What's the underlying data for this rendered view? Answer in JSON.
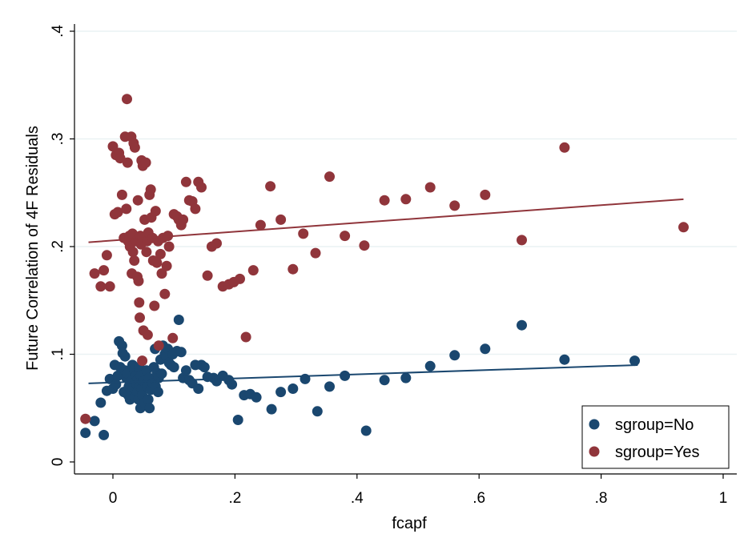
{
  "chart_data": {
    "type": "scatter",
    "xlabel": "fcapf",
    "ylabel": "Future Correlation of 4F Residuals",
    "xlim": [
      -0.06,
      1.0
    ],
    "ylim": [
      -0.01,
      0.4
    ],
    "x_ticks": [
      {
        "value": 0,
        "label": "0"
      },
      {
        "value": 0.2,
        "label": ".2"
      },
      {
        "value": 0.4,
        "label": ".4"
      },
      {
        "value": 0.6,
        "label": ".6"
      },
      {
        "value": 0.8,
        "label": ".8"
      },
      {
        "value": 1,
        "label": "1"
      }
    ],
    "y_ticks": [
      {
        "value": 0,
        "label": "0"
      },
      {
        "value": 0.1,
        "label": ".1"
      },
      {
        "value": 0.2,
        "label": ".2"
      },
      {
        "value": 0.3,
        "label": ".3"
      },
      {
        "value": 0.4,
        "label": ".4"
      }
    ],
    "grid": "horizontal",
    "legend_position": "bottom-right",
    "series": [
      {
        "name": "sgroup=No",
        "color": "#1a476f",
        "fit_line": {
          "x": [
            -0.04,
            0.86
          ],
          "y": [
            0.073,
            0.09
          ]
        },
        "points": [
          [
            -0.045,
            0.027
          ],
          [
            -0.03,
            0.038
          ],
          [
            -0.02,
            0.055
          ],
          [
            -0.015,
            0.025
          ],
          [
            -0.01,
            0.066
          ],
          [
            -0.005,
            0.077
          ],
          [
            0.0,
            0.068
          ],
          [
            0.003,
            0.09
          ],
          [
            0.005,
            0.072
          ],
          [
            0.008,
            0.08
          ],
          [
            0.01,
            0.112
          ],
          [
            0.012,
            0.088
          ],
          [
            0.015,
            0.108
          ],
          [
            0.016,
            0.101
          ],
          [
            0.018,
            0.065
          ],
          [
            0.02,
            0.098
          ],
          [
            0.02,
            0.085
          ],
          [
            0.022,
            0.078
          ],
          [
            0.024,
            0.082
          ],
          [
            0.025,
            0.062
          ],
          [
            0.026,
            0.07
          ],
          [
            0.028,
            0.058
          ],
          [
            0.03,
            0.075
          ],
          [
            0.032,
            0.09
          ],
          [
            0.033,
            0.069
          ],
          [
            0.035,
            0.085
          ],
          [
            0.036,
            0.06
          ],
          [
            0.038,
            0.08
          ],
          [
            0.039,
            0.072
          ],
          [
            0.04,
            0.065
          ],
          [
            0.041,
            0.077
          ],
          [
            0.042,
            0.058
          ],
          [
            0.043,
            0.088
          ],
          [
            0.044,
            0.07
          ],
          [
            0.045,
            0.05
          ],
          [
            0.046,
            0.08
          ],
          [
            0.047,
            0.068
          ],
          [
            0.048,
            0.062
          ],
          [
            0.05,
            0.075
          ],
          [
            0.052,
            0.055
          ],
          [
            0.054,
            0.072
          ],
          [
            0.055,
            0.085
          ],
          [
            0.056,
            0.07
          ],
          [
            0.058,
            0.058
          ],
          [
            0.059,
            0.078
          ],
          [
            0.06,
            0.05
          ],
          [
            0.062,
            0.067
          ],
          [
            0.065,
            0.073
          ],
          [
            0.067,
            0.088
          ],
          [
            0.069,
            0.105
          ],
          [
            0.07,
            0.07
          ],
          [
            0.072,
            0.083
          ],
          [
            0.074,
            0.065
          ],
          [
            0.075,
            0.078
          ],
          [
            0.078,
            0.095
          ],
          [
            0.08,
            0.082
          ],
          [
            0.082,
            0.108
          ],
          [
            0.085,
            0.1
          ],
          [
            0.088,
            0.098
          ],
          [
            0.09,
            0.105
          ],
          [
            0.092,
            0.092
          ],
          [
            0.095,
            0.09
          ],
          [
            0.098,
            0.1
          ],
          [
            0.1,
            0.088
          ],
          [
            0.105,
            0.103
          ],
          [
            0.108,
            0.132
          ],
          [
            0.112,
            0.102
          ],
          [
            0.115,
            0.078
          ],
          [
            0.12,
            0.085
          ],
          [
            0.125,
            0.076
          ],
          [
            0.13,
            0.073
          ],
          [
            0.135,
            0.09
          ],
          [
            0.14,
            0.068
          ],
          [
            0.145,
            0.09
          ],
          [
            0.15,
            0.088
          ],
          [
            0.155,
            0.079
          ],
          [
            0.165,
            0.078
          ],
          [
            0.17,
            0.075
          ],
          [
            0.18,
            0.08
          ],
          [
            0.19,
            0.076
          ],
          [
            0.195,
            0.072
          ],
          [
            0.205,
            0.039
          ],
          [
            0.215,
            0.062
          ],
          [
            0.225,
            0.063
          ],
          [
            0.235,
            0.06
          ],
          [
            0.26,
            0.049
          ],
          [
            0.275,
            0.065
          ],
          [
            0.295,
            0.068
          ],
          [
            0.315,
            0.077
          ],
          [
            0.335,
            0.047
          ],
          [
            0.355,
            0.07
          ],
          [
            0.38,
            0.08
          ],
          [
            0.415,
            0.029
          ],
          [
            0.445,
            0.076
          ],
          [
            0.48,
            0.078
          ],
          [
            0.52,
            0.089
          ],
          [
            0.56,
            0.099
          ],
          [
            0.61,
            0.105
          ],
          [
            0.67,
            0.127
          ],
          [
            0.74,
            0.095
          ],
          [
            0.855,
            0.094
          ]
        ]
      },
      {
        "name": "sgroup=Yes",
        "color": "#90353b",
        "fit_line": {
          "x": [
            -0.04,
            0.935
          ],
          "y": [
            0.204,
            0.244
          ]
        },
        "points": [
          [
            -0.045,
            0.04
          ],
          [
            -0.03,
            0.175
          ],
          [
            -0.02,
            0.163
          ],
          [
            -0.015,
            0.178
          ],
          [
            -0.01,
            0.192
          ],
          [
            -0.005,
            0.163
          ],
          [
            0.0,
            0.293
          ],
          [
            0.003,
            0.23
          ],
          [
            0.005,
            0.285
          ],
          [
            0.008,
            0.232
          ],
          [
            0.01,
            0.287
          ],
          [
            0.012,
            0.282
          ],
          [
            0.015,
            0.248
          ],
          [
            0.018,
            0.208
          ],
          [
            0.02,
            0.302
          ],
          [
            0.022,
            0.235
          ],
          [
            0.023,
            0.337
          ],
          [
            0.024,
            0.278
          ],
          [
            0.025,
            0.205
          ],
          [
            0.027,
            0.21
          ],
          [
            0.028,
            0.2
          ],
          [
            0.03,
            0.302
          ],
          [
            0.031,
            0.175
          ],
          [
            0.032,
            0.212
          ],
          [
            0.033,
            0.195
          ],
          [
            0.034,
            0.296
          ],
          [
            0.035,
            0.187
          ],
          [
            0.036,
            0.292
          ],
          [
            0.038,
            0.205
          ],
          [
            0.04,
            0.172
          ],
          [
            0.041,
            0.243
          ],
          [
            0.042,
            0.168
          ],
          [
            0.043,
            0.148
          ],
          [
            0.044,
            0.134
          ],
          [
            0.045,
            0.21
          ],
          [
            0.046,
            0.202
          ],
          [
            0.047,
            0.28
          ],
          [
            0.048,
            0.094
          ],
          [
            0.049,
            0.275
          ],
          [
            0.05,
            0.122
          ],
          [
            0.052,
            0.225
          ],
          [
            0.054,
            0.278
          ],
          [
            0.055,
            0.195
          ],
          [
            0.056,
            0.205
          ],
          [
            0.057,
            0.118
          ],
          [
            0.058,
            0.213
          ],
          [
            0.06,
            0.248
          ],
          [
            0.062,
            0.253
          ],
          [
            0.063,
            0.227
          ],
          [
            0.065,
            0.208
          ],
          [
            0.066,
            0.187
          ],
          [
            0.068,
            0.145
          ],
          [
            0.07,
            0.233
          ],
          [
            0.072,
            0.185
          ],
          [
            0.074,
            0.205
          ],
          [
            0.075,
            0.108
          ],
          [
            0.078,
            0.193
          ],
          [
            0.08,
            0.175
          ],
          [
            0.082,
            0.208
          ],
          [
            0.085,
            0.156
          ],
          [
            0.088,
            0.182
          ],
          [
            0.09,
            0.21
          ],
          [
            0.092,
            0.2
          ],
          [
            0.098,
            0.115
          ],
          [
            0.1,
            0.23
          ],
          [
            0.105,
            0.228
          ],
          [
            0.108,
            0.225
          ],
          [
            0.112,
            0.22
          ],
          [
            0.115,
            0.225
          ],
          [
            0.12,
            0.26
          ],
          [
            0.125,
            0.243
          ],
          [
            0.13,
            0.242
          ],
          [
            0.135,
            0.235
          ],
          [
            0.14,
            0.26
          ],
          [
            0.145,
            0.255
          ],
          [
            0.155,
            0.173
          ],
          [
            0.162,
            0.2
          ],
          [
            0.17,
            0.203
          ],
          [
            0.18,
            0.163
          ],
          [
            0.19,
            0.165
          ],
          [
            0.198,
            0.167
          ],
          [
            0.208,
            0.17
          ],
          [
            0.218,
            0.116
          ],
          [
            0.23,
            0.178
          ],
          [
            0.242,
            0.22
          ],
          [
            0.258,
            0.256
          ],
          [
            0.275,
            0.225
          ],
          [
            0.295,
            0.179
          ],
          [
            0.312,
            0.212
          ],
          [
            0.332,
            0.194
          ],
          [
            0.355,
            0.265
          ],
          [
            0.38,
            0.21
          ],
          [
            0.412,
            0.201
          ],
          [
            0.445,
            0.243
          ],
          [
            0.48,
            0.244
          ],
          [
            0.52,
            0.255
          ],
          [
            0.56,
            0.238
          ],
          [
            0.61,
            0.248
          ],
          [
            0.67,
            0.206
          ],
          [
            0.74,
            0.292
          ],
          [
            0.935,
            0.218
          ]
        ]
      }
    ]
  }
}
